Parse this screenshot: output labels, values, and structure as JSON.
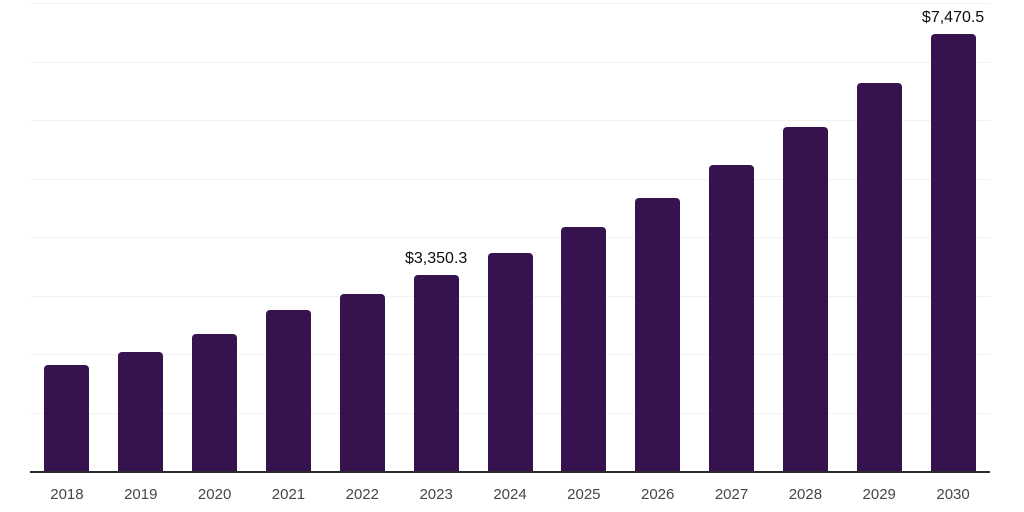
{
  "chart_data": {
    "type": "bar",
    "title": "",
    "xlabel": "",
    "ylabel": "",
    "categories": [
      "2018",
      "2019",
      "2020",
      "2021",
      "2022",
      "2023",
      "2024",
      "2025",
      "2026",
      "2027",
      "2028",
      "2029",
      "2030"
    ],
    "values": [
      1820,
      2030,
      2350,
      2760,
      3025,
      3350.3,
      3720,
      4170,
      4665,
      5230,
      5875,
      6630,
      7470.5
    ],
    "data_labels": [
      null,
      null,
      null,
      null,
      null,
      "$3,350.3",
      null,
      null,
      null,
      null,
      null,
      null,
      "$7,470.5"
    ],
    "ylim": [
      0,
      8000
    ],
    "gridline_step": 1000,
    "grid": "horizontal",
    "legend_position": "none",
    "y_axis_labels_visible": false,
    "colors": {
      "bar": "#36124F",
      "gridline": "#f2f2f2",
      "axis": "#2b2b2b",
      "tick_label": "#474747",
      "value_label": "#0d0d0d",
      "background": "#ffffff"
    }
  }
}
